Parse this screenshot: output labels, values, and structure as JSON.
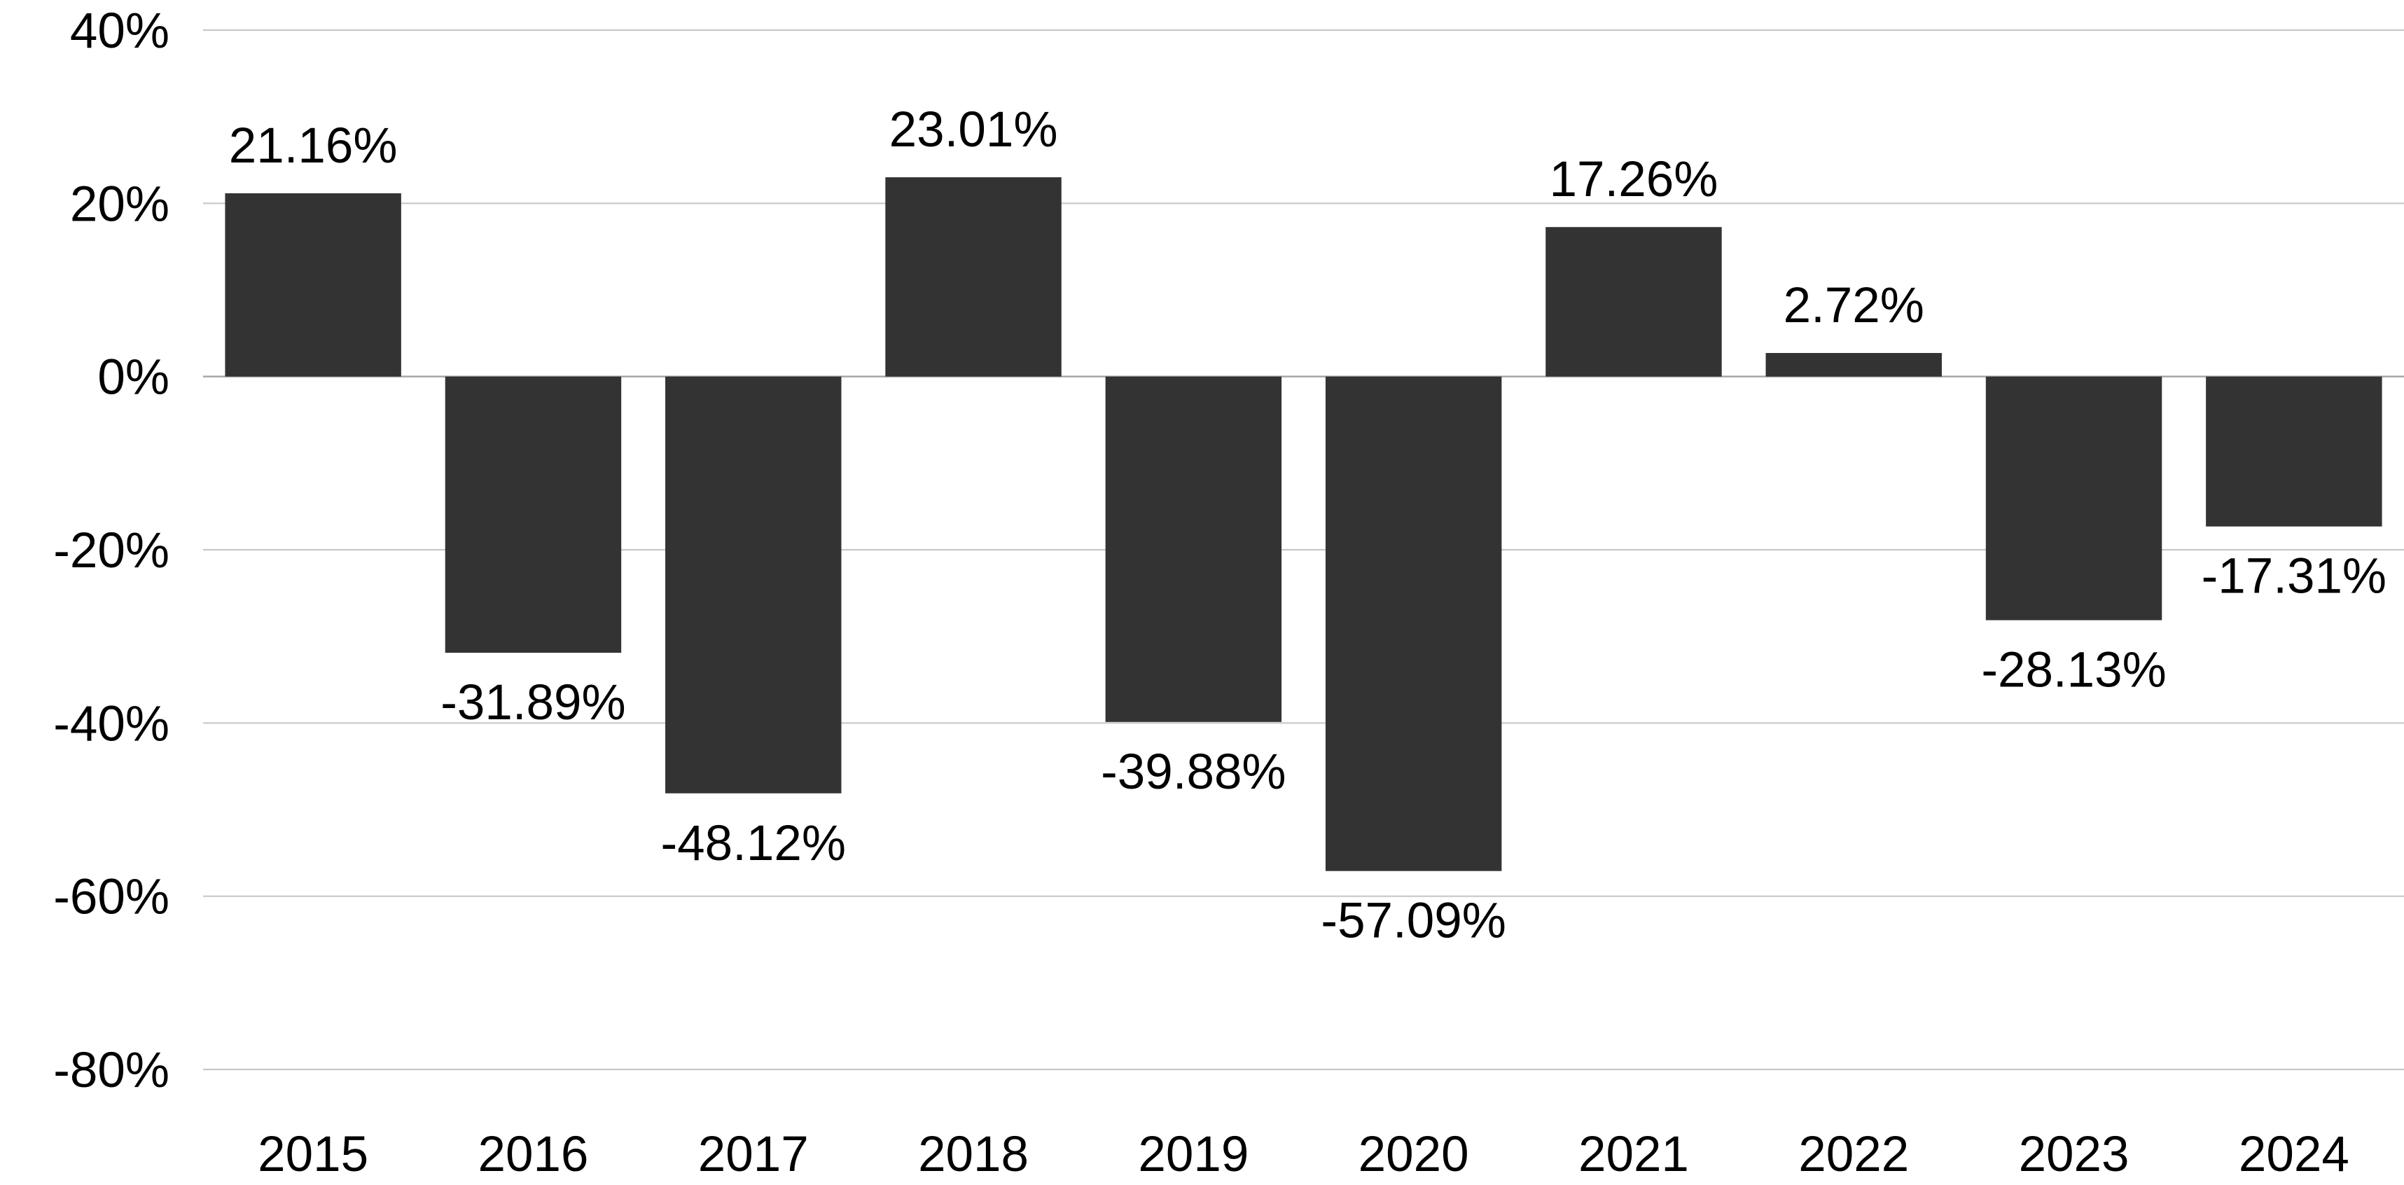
{
  "chart_data": {
    "type": "bar",
    "title": "",
    "xlabel": "",
    "ylabel": "",
    "categories": [
      "2015",
      "2016",
      "2017",
      "2018",
      "2019",
      "2020",
      "2021",
      "2022",
      "2023",
      "2024"
    ],
    "values": [
      21.16,
      -31.89,
      -48.12,
      23.01,
      -39.88,
      -57.09,
      17.26,
      2.72,
      -28.13,
      -17.31
    ],
    "data_labels": [
      "21.16%",
      "-31.89%",
      "-48.12%",
      "23.01%",
      "-39.88%",
      "-57.09%",
      "17.26%",
      "2.72%",
      "-28.13%",
      "-17.31%"
    ],
    "ylim": [
      -80,
      40
    ],
    "yticks": [
      40,
      20,
      0,
      -20,
      -40,
      -60,
      -80
    ],
    "ytick_labels": [
      "40%",
      "20%",
      "0%",
      "-20%",
      "-40%",
      "-60%",
      "-80%"
    ],
    "grid": true,
    "legend": "none",
    "bar_color": "#333333"
  }
}
